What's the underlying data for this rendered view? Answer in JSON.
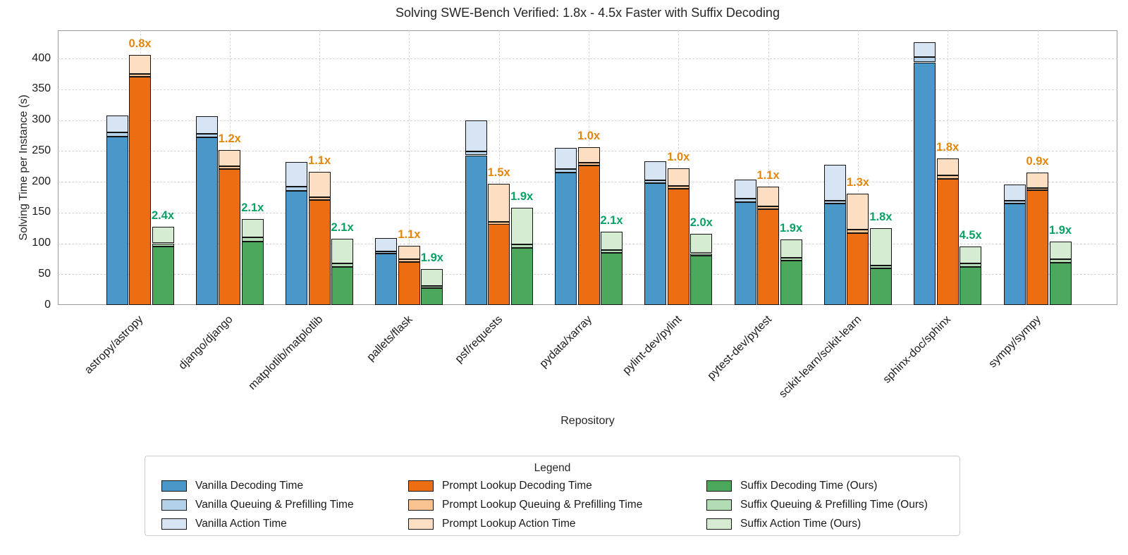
{
  "title": "Solving SWE-Bench Verified: 1.8x - 4.5x Faster with Suffix Decoding",
  "xlabel": "Repository",
  "ylabel": "Solving Time per Instance (s)",
  "legend": {
    "title": "Legend",
    "columns": [
      {
        "entries": [
          {
            "label": "Vanilla Decoding Time",
            "color": "#4a98c9"
          },
          {
            "label": "Vanilla Queuing & Prefilling Time",
            "color": "#b3d2ea"
          },
          {
            "label": "Vanilla Action Time",
            "color": "#d6e4f4"
          }
        ]
      },
      {
        "entries": [
          {
            "label": "Prompt Lookup Decoding Time",
            "color": "#ed6d13"
          },
          {
            "label": "Prompt Lookup Queuing & Prefilling Time",
            "color": "#f9c291"
          },
          {
            "label": "Prompt Lookup Action Time",
            "color": "#fcdfc2"
          }
        ]
      },
      {
        "entries": [
          {
            "label": "Suffix Decoding Time (Ours)",
            "color": "#4ca85c"
          },
          {
            "label": "Suffix Queuing & Prefilling Time (Ours)",
            "color": "#b2ddb4"
          },
          {
            "label": "Suffix Action Time (Ours)",
            "color": "#d5ecd2"
          }
        ]
      }
    ]
  },
  "chart_data": {
    "type": "bar",
    "stacked": true,
    "title": "Solving SWE-Bench Verified: 1.8x - 4.5x Faster with Suffix Decoding",
    "xlabel": "Repository",
    "ylabel": "Solving Time per Instance (s)",
    "ylim": [
      0,
      446
    ],
    "yticks": [
      0,
      50,
      100,
      150,
      200,
      250,
      300,
      350,
      400
    ],
    "grid": "dashed horizontal and vertical gridlines",
    "legend_position": "bottom",
    "categories": [
      "astropy/astropy",
      "django/django",
      "matplotlib/matplotlib",
      "pallets/flask",
      "psf/requests",
      "pydata/xarray",
      "pylint-dev/pylint",
      "pytest-dev/pytest",
      "scikit-learn/scikit-learn",
      "sphinx-doc/sphinx",
      "sympy/sympy"
    ],
    "stacks": [
      {
        "name": "Vanilla",
        "speedup_labels": null,
        "segments": [
          {
            "name": "Vanilla Decoding Time",
            "color": "#4a98c9",
            "values": [
              273,
              272,
              185,
              83,
              243,
              215,
              198,
              167,
              165,
              394,
              165
            ]
          },
          {
            "name": "Vanilla Queuing & Prefilling Time",
            "color": "#b3d2ea",
            "values": [
              7,
              6,
              7,
              4,
              6,
              6,
              4,
              6,
              4,
              9,
              4
            ]
          },
          {
            "name": "Vanilla Action Time",
            "color": "#d6e4f4",
            "values": [
              28,
              28,
              40,
              22,
              51,
              34,
              31,
              31,
              59,
              24,
              27
            ]
          }
        ]
      },
      {
        "name": "Prompt Lookup",
        "label_color": "#e2870d",
        "speedup_labels": [
          "0.8x",
          "1.2x",
          "1.1x",
          "1.1x",
          "1.5x",
          "1.0x",
          "1.0x",
          "1.1x",
          "1.3x",
          "1.8x",
          "0.9x"
        ],
        "segments": [
          {
            "name": "Prompt Lookup Decoding Time",
            "color": "#ed6d13",
            "values": [
              371,
              221,
              171,
              70,
              131,
              226,
              189,
              156,
              117,
              205,
              186
            ]
          },
          {
            "name": "Prompt Lookup Queuing & Prefilling Time",
            "color": "#f9c291",
            "values": [
              4,
              4,
              4,
              4,
              4,
              5,
              4,
              4,
              5,
              5,
              4
            ]
          },
          {
            "name": "Prompt Lookup Action Time",
            "color": "#fcdfc2",
            "values": [
              31,
              27,
              41,
              22,
              62,
              25,
              29,
              32,
              59,
              28,
              25
            ]
          }
        ]
      },
      {
        "name": "Suffix (Ours)",
        "label_color": "#0ba164",
        "speedup_labels": [
          "2.4x",
          "2.1x",
          "2.1x",
          "1.9x",
          "1.9x",
          "2.1x",
          "2.0x",
          "1.9x",
          "1.8x",
          "4.5x",
          "1.9x"
        ],
        "segments": [
          {
            "name": "Suffix Decoding Time (Ours)",
            "color": "#4ca85c",
            "values": [
              95,
              103,
              62,
              27,
              93,
              85,
              80,
              72,
              60,
              62,
              69
            ]
          },
          {
            "name": "Suffix Queuing & Prefilling Time (Ours)",
            "color": "#b2ddb4",
            "values": [
              5,
              7,
              5,
              4,
              5,
              4,
              4,
              5,
              4,
              5,
              5
            ]
          },
          {
            "name": "Suffix Action Time (Ours)",
            "color": "#d5ecd2",
            "values": [
              27,
              30,
              41,
              27,
              60,
              30,
              31,
              29,
              61,
              28,
              29
            ]
          }
        ]
      }
    ]
  }
}
